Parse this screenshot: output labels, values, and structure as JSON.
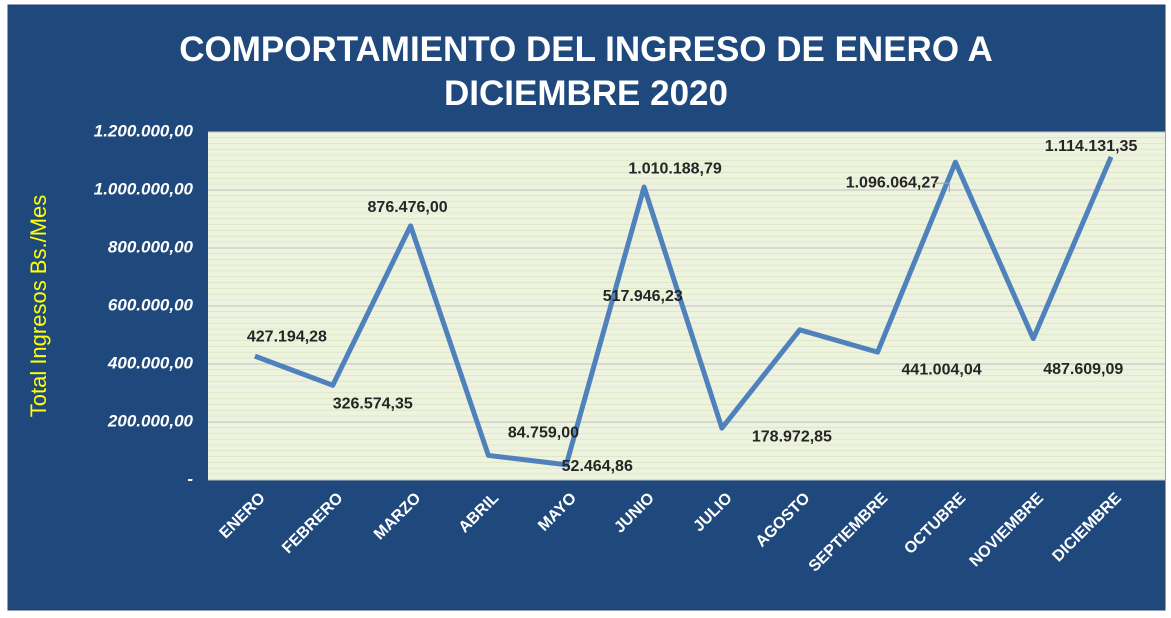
{
  "chart_data": {
    "type": "line",
    "title": "COMPORTAMIENTO DEL INGRESO DE ENERO A DICIEMBRE 2020",
    "y_label": "Total Ingresos Bs./Mes",
    "categories": [
      "ENERO",
      "FEBRERO",
      "MARZO",
      "ABRIL",
      "MAYO",
      "JUNIO",
      "JULIO",
      "AGOSTO",
      "SEPTIEMBRE",
      "OCTUBRE",
      "NOVIEMBRE",
      "DICIEMBRE"
    ],
    "values": [
      427194.28,
      326574.35,
      876476.0,
      84759.0,
      52464.86,
      1010188.79,
      178972.85,
      517946.23,
      441004.04,
      1096064.27,
      487609.09,
      1114131.35
    ],
    "value_labels": [
      "427.194,28",
      "326.574,35",
      "876.476,00",
      "84.759,00",
      "52.464,86",
      "1.010.188,79",
      "178.972,85",
      "517.946,23",
      "441.004,04",
      "1.096.064,27",
      "487.609,09",
      "1.114.131,35"
    ],
    "color": "#4f81bd",
    "ylim": [
      0,
      1200000
    ],
    "yticks": [
      {
        "value": 0,
        "label": "-"
      },
      {
        "value": 200000,
        "label": "200.000,00"
      },
      {
        "value": 400000,
        "label": "400.000,00"
      },
      {
        "value": 600000,
        "label": "600.000,00"
      },
      {
        "value": 800000,
        "label": "800.000,00"
      },
      {
        "value": 1000000,
        "label": "1.000.000,00"
      },
      {
        "value": 1200000,
        "label": "1.200.000,00"
      }
    ],
    "grid": true
  }
}
